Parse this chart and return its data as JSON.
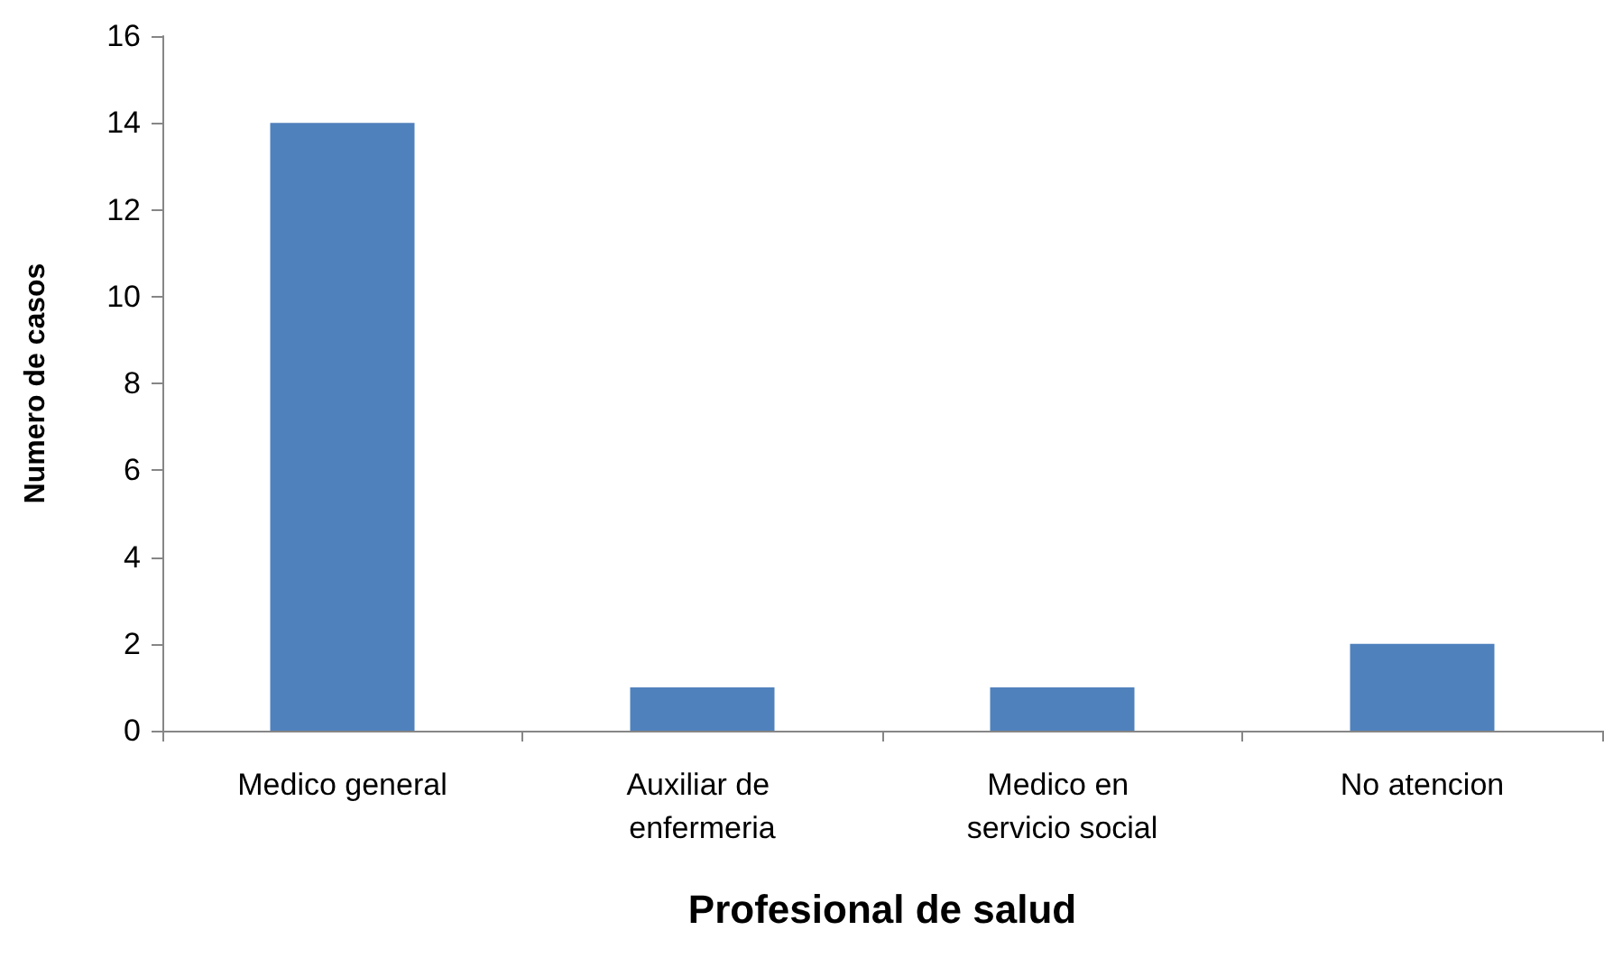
{
  "chart_data": {
    "type": "bar",
    "xlabel": "Profesional de salud",
    "ylabel": "Numero de casos",
    "categories": [
      "Medico general",
      "Auxiliar de enfermeria",
      "Medico en servicio social",
      "No atencion"
    ],
    "values": [
      14,
      1,
      1,
      2
    ],
    "color": "#4f81bd",
    "ylim": [
      0,
      16
    ],
    "yticks": [
      0,
      2,
      4,
      6,
      8,
      10,
      12,
      14,
      16
    ],
    "grid": false
  }
}
